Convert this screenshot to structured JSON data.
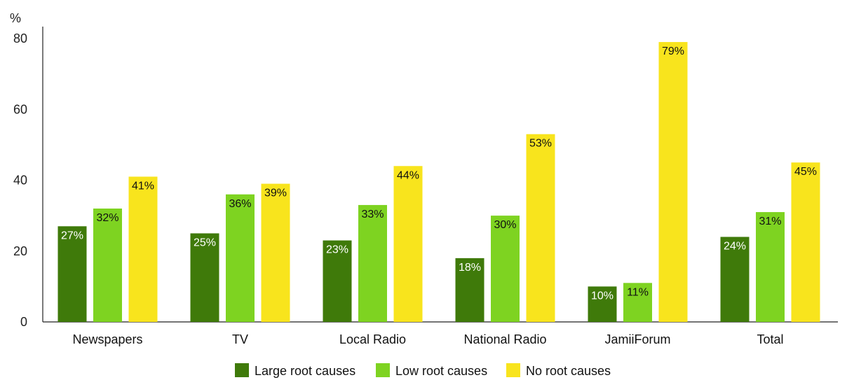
{
  "chart_data": {
    "type": "bar",
    "ylabel": "%",
    "ylim": [
      0,
      80
    ],
    "yticks": [
      0,
      20,
      40,
      60,
      80
    ],
    "categories": [
      "Newspapers",
      "TV",
      "Local Radio",
      "National Radio",
      "JamiiForum",
      "Total"
    ],
    "series": [
      {
        "name": "Large root causes",
        "color": "#3f7a0a",
        "label_color": "#ffffff",
        "values": [
          27,
          25,
          23,
          18,
          10,
          24
        ],
        "labels": [
          "27%",
          "25%",
          "23%",
          "18%",
          "10%",
          "24%"
        ]
      },
      {
        "name": "Low root causes",
        "color": "#7ed321",
        "label_color": "#111111",
        "values": [
          32,
          36,
          33,
          30,
          11,
          31
        ],
        "labels": [
          "32%",
          "36%",
          "33%",
          "30%",
          "11%",
          "31%"
        ]
      },
      {
        "name": "No root causes",
        "color": "#f8e41d",
        "label_color": "#111111",
        "values": [
          41,
          39,
          44,
          53,
          79,
          45
        ],
        "labels": [
          "41%",
          "39%",
          "44%",
          "53%",
          "79%",
          "45%"
        ]
      }
    ],
    "grid": false,
    "legend_position": "bottom"
  }
}
